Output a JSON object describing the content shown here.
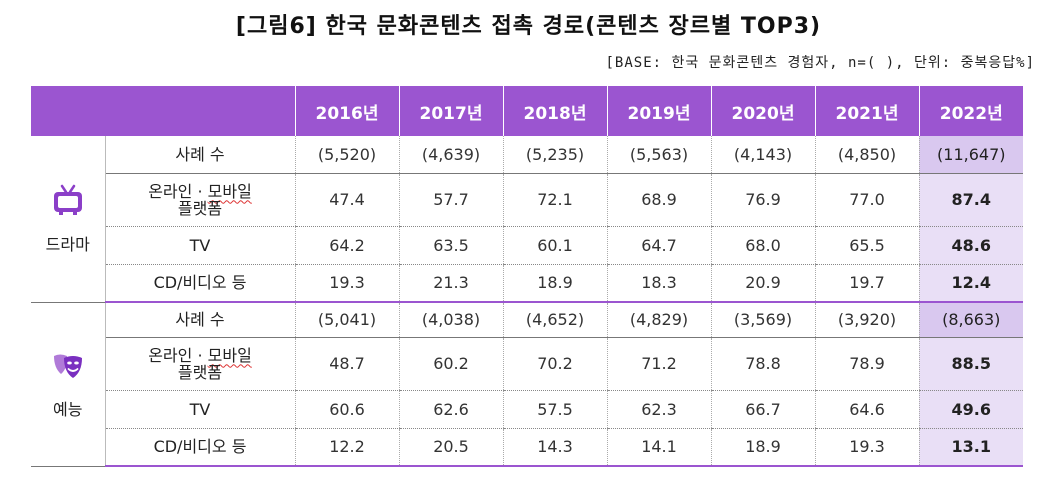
{
  "title": "[그림6] 한국 문화콘텐츠 접촉 경로(콘텐츠 장르별 TOP3)",
  "note": "[BASE: 한국 문화콘텐츠 경험자, n=( ), 단위: 중복응답%]",
  "years": [
    "2016년",
    "2017년",
    "2018년",
    "2019년",
    "2020년",
    "2021년",
    "2022년"
  ],
  "groups": [
    {
      "name": "드라마",
      "icon": "tv-icon",
      "rows": [
        {
          "label": "사례 수",
          "values": [
            "(5,520)",
            "(4,639)",
            "(5,235)",
            "(5,563)",
            "(4,143)",
            "(4,850)",
            "(11,647)"
          ]
        },
        {
          "label_line1": "온라인 · 모바일",
          "label_line2": "플랫폼",
          "values": [
            "47.4",
            "57.7",
            "72.1",
            "68.9",
            "76.9",
            "77.0",
            "87.4"
          ]
        },
        {
          "label": "TV",
          "values": [
            "64.2",
            "63.5",
            "60.1",
            "64.7",
            "68.0",
            "65.5",
            "48.6"
          ]
        },
        {
          "label": "CD/비디오 등",
          "values": [
            "19.3",
            "21.3",
            "18.9",
            "18.3",
            "20.9",
            "19.7",
            "12.4"
          ]
        }
      ]
    },
    {
      "name": "예능",
      "icon": "theater-masks-icon",
      "rows": [
        {
          "label": "사례 수",
          "values": [
            "(5,041)",
            "(4,038)",
            "(4,652)",
            "(4,829)",
            "(3,569)",
            "(3,920)",
            "(8,663)"
          ]
        },
        {
          "label_line1": "온라인 · 모바일",
          "label_line2": "플랫폼",
          "values": [
            "48.7",
            "60.2",
            "70.2",
            "71.2",
            "78.8",
            "78.9",
            "88.5"
          ]
        },
        {
          "label": "TV",
          "values": [
            "60.6",
            "62.6",
            "57.5",
            "62.3",
            "66.7",
            "64.6",
            "49.6"
          ]
        },
        {
          "label": "CD/비디오 등",
          "values": [
            "12.2",
            "20.5",
            "14.3",
            "14.1",
            "18.9",
            "19.3",
            "13.1"
          ]
        }
      ]
    }
  ],
  "colors": {
    "header": "#9b55d0",
    "highlight": "#e9dff6",
    "highlight_case": "#d9c8ef"
  }
}
